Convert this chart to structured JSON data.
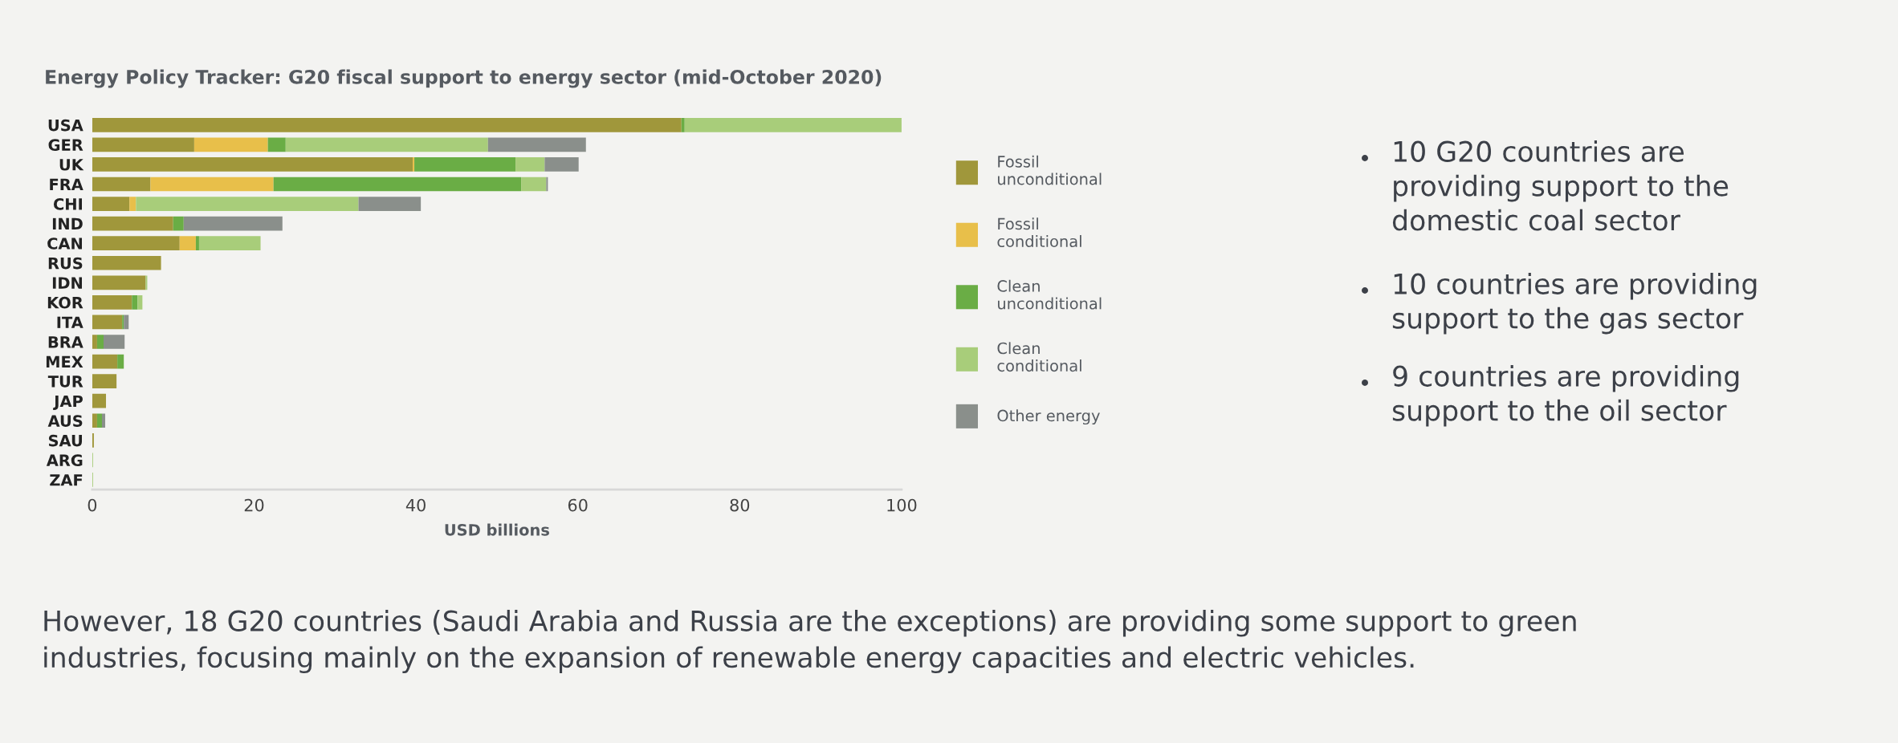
{
  "chart_data": {
    "type": "bar",
    "orientation": "horizontal",
    "stacked": true,
    "title": "Energy Policy Tracker: G20 fiscal support to energy sector (mid-October 2020)",
    "xlabel": "USD billions",
    "categories": [
      "USA",
      "GER",
      "UK",
      "FRA",
      "CHI",
      "IND",
      "CAN",
      "RUS",
      "IDN",
      "KOR",
      "ITA",
      "BRA",
      "MEX",
      "TUR",
      "JAP",
      "AUS",
      "SAU",
      "ARG",
      "ZAF"
    ],
    "series": [
      {
        "name": "Fossil\nunconditional",
        "color": "#a0973b",
        "values": [
          72.8,
          12.6,
          39.6,
          7.2,
          4.6,
          10.0,
          10.8,
          8.5,
          6.6,
          4.9,
          3.7,
          0.6,
          3.1,
          3.0,
          1.7,
          0.6,
          0.2,
          0,
          0
        ]
      },
      {
        "name": "Fossil\nconditional",
        "color": "#e8bf4a",
        "values": [
          0,
          9.1,
          0.2,
          15.2,
          0.8,
          0,
          2.0,
          0,
          0,
          0,
          0,
          0,
          0,
          0,
          0,
          0,
          0,
          0,
          0
        ]
      },
      {
        "name": "Clean\nunconditional",
        "color": "#6aad45",
        "values": [
          0.4,
          2.2,
          12.5,
          30.6,
          0,
          1.3,
          0.4,
          0,
          0,
          0.7,
          0.2,
          0.8,
          0.8,
          0,
          0,
          0.6,
          0,
          0,
          0
        ]
      },
      {
        "name": "Clean\nconditional",
        "color": "#a8cd7a",
        "values": [
          26.9,
          25.0,
          3.6,
          3.1,
          27.5,
          0,
          7.6,
          0,
          0.2,
          0.6,
          0,
          0,
          0,
          0,
          0,
          0,
          0,
          0.1,
          0.1
        ]
      },
      {
        "name": "Other energy",
        "color": "#8a8f8b",
        "values": [
          0,
          12.1,
          4.2,
          0.2,
          7.7,
          12.2,
          0,
          0,
          0,
          0,
          0.6,
          2.6,
          0,
          0,
          0,
          0.4,
          0,
          0,
          0
        ]
      }
    ],
    "xlim": [
      0,
      100
    ],
    "xticks": [
      0,
      20,
      40,
      60,
      80,
      100
    ],
    "legend": "right",
    "annotations": [
      "10 G20 countries are\nproviding support to the\ndomestic coal sector",
      "10 countries are providing\nsupport to the gas sector",
      "9 countries are providing\nsupport to the oil sector",
      "However, 18 G20 countries (Saudi Arabia and Russia are the exceptions) are providing some support to green\nindustries, focusing mainly on the expansion of renewable energy capacities and electric vehicles."
    ]
  }
}
